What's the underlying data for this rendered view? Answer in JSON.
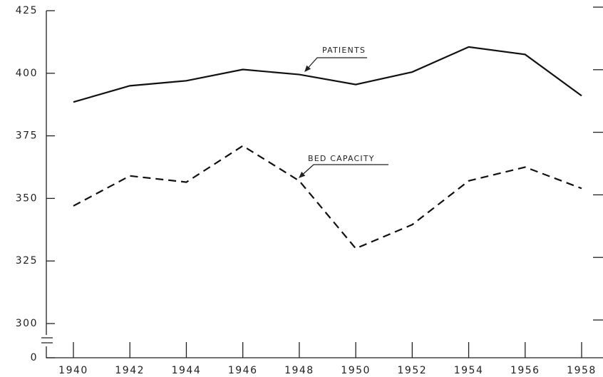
{
  "chart_data": {
    "type": "line",
    "x": [
      1940,
      1942,
      1944,
      1946,
      1948,
      1950,
      1952,
      1954,
      1956,
      1958
    ],
    "xlim": [
      1940,
      1958
    ],
    "xticks": [
      1940,
      1942,
      1944,
      1946,
      1948,
      1950,
      1952,
      1954,
      1956,
      1958
    ],
    "ylim": [
      300,
      425
    ],
    "yticks": [
      0,
      300,
      325,
      350,
      375,
      400,
      425
    ],
    "axis_break": true,
    "series": [
      {
        "name": "PATIENTS",
        "color": "#111111",
        "line_style": "solid",
        "values": [
          388.5,
          395,
          397,
          401.5,
          399.5,
          395.5,
          400.5,
          410.5,
          407.5,
          391
        ]
      },
      {
        "name": "BED CAPACITY",
        "color": "#111111",
        "line_style": "dashed",
        "values": [
          347,
          359,
          356.5,
          371,
          357,
          330,
          339.5,
          357,
          362.5,
          354
        ]
      }
    ]
  }
}
